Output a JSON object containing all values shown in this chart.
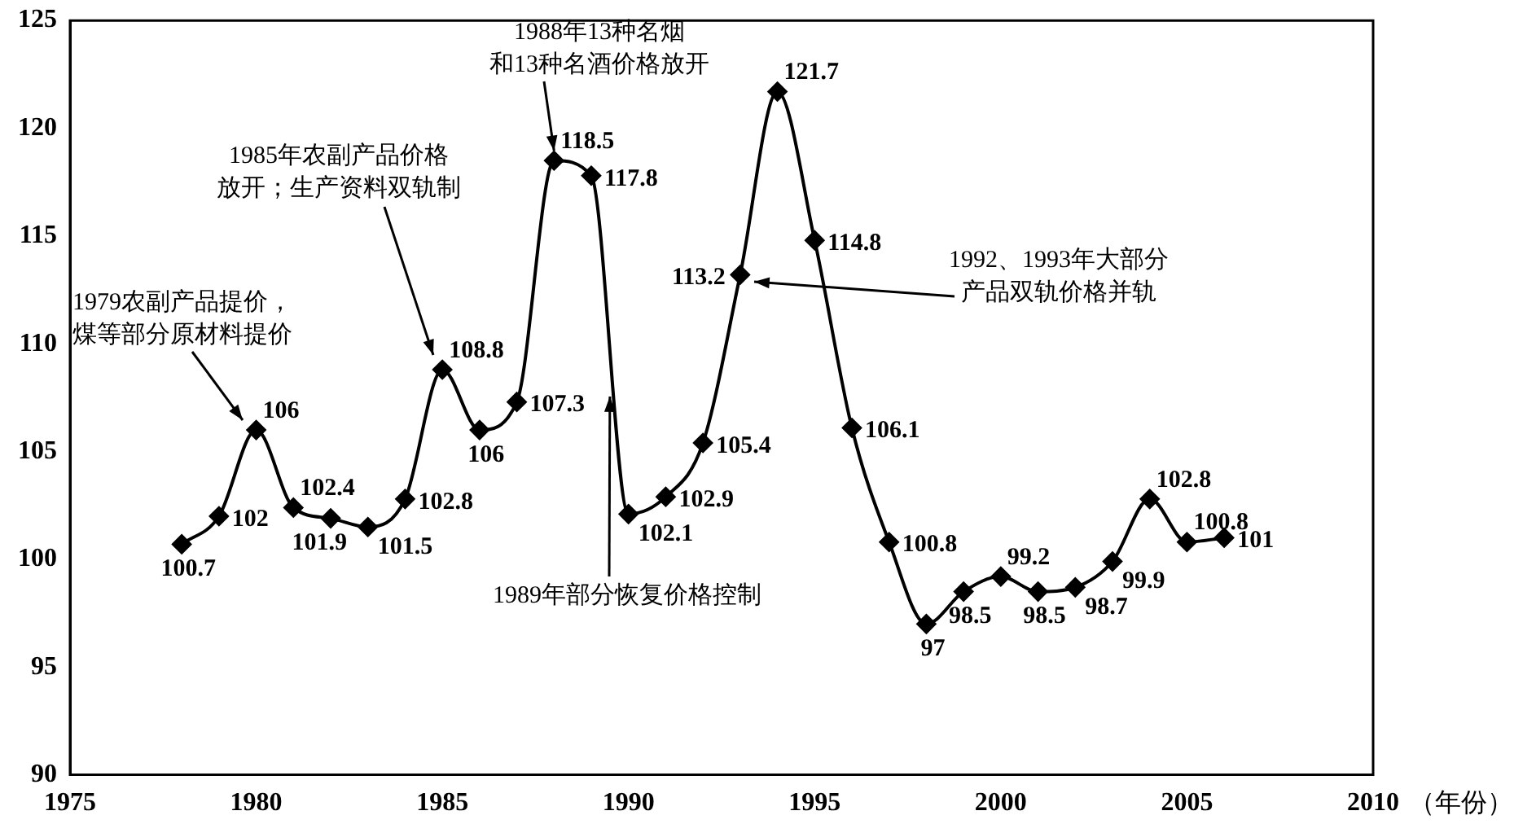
{
  "chart_data": {
    "type": "line",
    "xlabel": "（年份）",
    "x": [
      1978,
      1979,
      1980,
      1981,
      1982,
      1983,
      1984,
      1985,
      1986,
      1987,
      1988,
      1989,
      1990,
      1991,
      1992,
      1993,
      1994,
      1995,
      1996,
      1997,
      1998,
      1999,
      2000,
      2001,
      2002,
      2003,
      2004,
      2005,
      2006
    ],
    "series": [
      {
        "color": "#000000",
        "values": [
          100.7,
          102,
          106,
          102.4,
          101.9,
          101.5,
          102.8,
          108.8,
          106,
          107.3,
          118.5,
          117.8,
          102.1,
          102.9,
          105.4,
          113.2,
          121.7,
          114.8,
          106.1,
          100.8,
          97,
          98.5,
          99.2,
          98.5,
          98.7,
          99.9,
          102.8,
          100.8,
          101
        ]
      }
    ],
    "xlim": [
      1975,
      2010
    ],
    "xticks": [
      1975,
      1980,
      1985,
      1990,
      1995,
      2000,
      2005,
      2010
    ],
    "ylim": [
      90,
      125
    ],
    "yticks": [
      90,
      95,
      100,
      105,
      110,
      115,
      120,
      125
    ],
    "grid": false,
    "legend": false,
    "marker": "diamond",
    "line_style": "solid",
    "data_labels": true,
    "annotations": [
      "1979农副产品提价，煤等部分原材料提价",
      "1985年农副产品价格放开；生产资料双轨制",
      {
        "text": "1988年13种名烟和13种名酒价格放开",
        "x": 1988,
        "y": 118.5
      },
      "1992、1993年大部分产品双轨价格并轨",
      {
        "text": "1989年部分恢复价格控制",
        "x": 1989.5,
        "y": 107.7
      }
    ]
  }
}
